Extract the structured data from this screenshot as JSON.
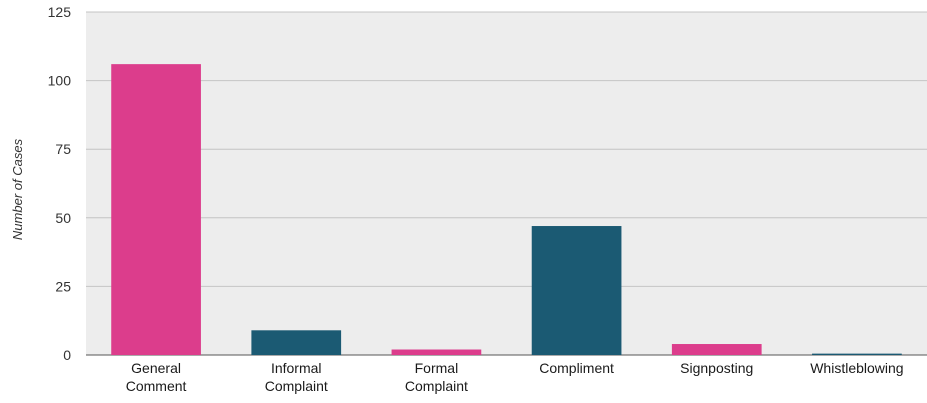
{
  "chart_data": {
    "type": "bar",
    "title": "",
    "xlabel": "",
    "ylabel": "Number of Cases",
    "ylim": [
      0,
      125
    ],
    "yticks": [
      0,
      25,
      50,
      75,
      100,
      125
    ],
    "grid": true,
    "legend": "none",
    "categories": [
      [
        "General",
        "Comment"
      ],
      [
        "Informal",
        "Complaint"
      ],
      [
        "Formal",
        "Complaint"
      ],
      [
        "Compliment"
      ],
      [
        "Signposting"
      ],
      [
        "Whistleblowing"
      ]
    ],
    "values": [
      106,
      9,
      2,
      47,
      4,
      0.5
    ],
    "colors": [
      "#dc3d8c",
      "#1b5a73",
      "#dc3d8c",
      "#1b5a73",
      "#dc3d8c",
      "#1b5a73"
    ],
    "plot_background": "#ededed",
    "grid_color": "#c4c4c4"
  }
}
